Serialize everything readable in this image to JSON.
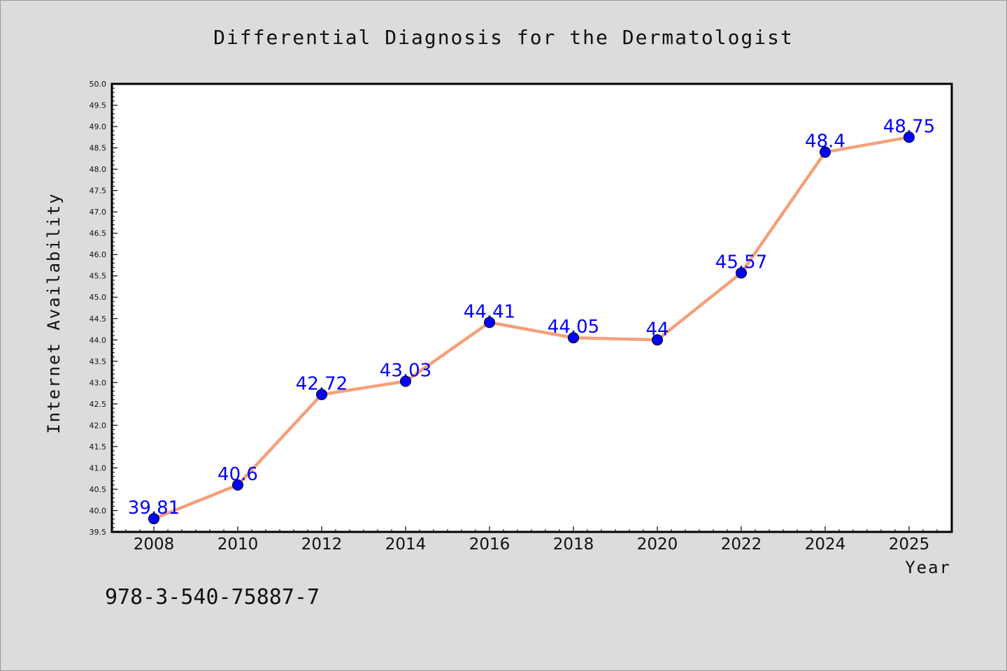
{
  "chart_data": {
    "type": "line",
    "title": "Differential Diagnosis for the Dermatologist",
    "xlabel": "Year",
    "ylabel": "Internet Availability",
    "categories": [
      "2008",
      "2010",
      "2012",
      "2014",
      "2016",
      "2018",
      "2020",
      "2022",
      "2024",
      "2025"
    ],
    "series": [
      {
        "values": [
          39.81,
          40.6,
          42.72,
          43.03,
          44.41,
          44.05,
          44,
          45.57,
          48.4,
          48.75
        ],
        "data_labels": [
          "39.81",
          "40.6",
          "42.72",
          "43.03",
          "44.41",
          "44.05",
          "44",
          "45.57",
          "48.4",
          "48.75"
        ],
        "line_color": "#f4a07a",
        "marker_color": "#0000ff"
      }
    ],
    "ylim": [
      39.5,
      50.0
    ],
    "yticks": [
      "39.5",
      "40.0",
      "40.5",
      "41.0",
      "41.5",
      "42.0",
      "42.5",
      "43.0",
      "43.5",
      "44.0",
      "44.5",
      "45.0",
      "45.5",
      "46.0",
      "46.5",
      "47.0",
      "47.5",
      "48.0",
      "48.5",
      "49.0",
      "49.5",
      "50.0"
    ],
    "grid": false,
    "legend": "none",
    "data_label_color": "#0000ff"
  },
  "footer": {
    "code": "978-3-540-75887-7"
  },
  "colors": {
    "background": "#dcdcdc",
    "plot_background": "#ffffff",
    "axis": "#000000"
  }
}
